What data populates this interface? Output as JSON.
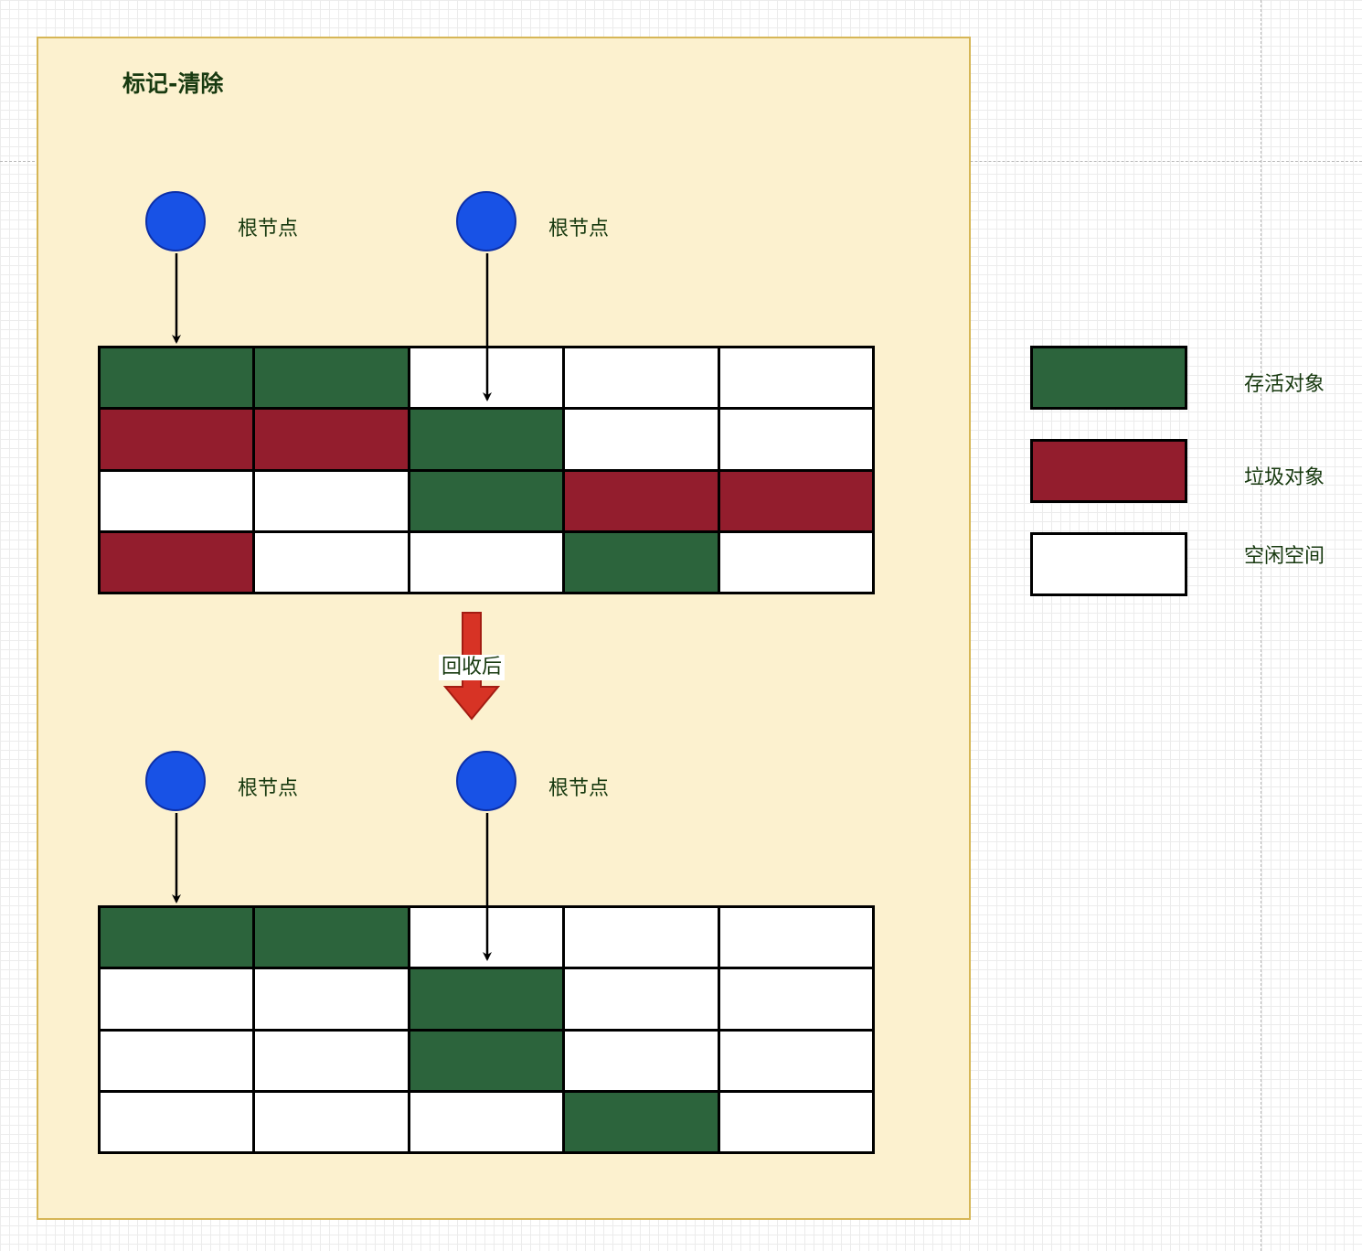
{
  "diagram": {
    "title": "标记-清除",
    "root_label": "根节点",
    "transition_label": "回收后"
  },
  "before_grid": {
    "rows": [
      [
        "live",
        "live",
        "free",
        "free",
        "free"
      ],
      [
        "garbage",
        "garbage",
        "live",
        "free",
        "free"
      ],
      [
        "free",
        "free",
        "live",
        "garbage",
        "garbage"
      ],
      [
        "garbage",
        "free",
        "free",
        "live",
        "free"
      ]
    ]
  },
  "after_grid": {
    "rows": [
      [
        "live",
        "live",
        "free",
        "free",
        "free"
      ],
      [
        "free",
        "free",
        "live",
        "free",
        "free"
      ],
      [
        "free",
        "free",
        "live",
        "free",
        "free"
      ],
      [
        "free",
        "free",
        "free",
        "live",
        "free"
      ]
    ]
  },
  "legend": {
    "live_label": "存活对象",
    "garbage_label": "垃圾对象",
    "free_label": "空闲空间"
  },
  "colors": {
    "live": "#2c643c",
    "garbage": "#931d2d",
    "free": "#ffffff",
    "root": "#1852e6",
    "frame_fill": "#fcf1cf",
    "frame_border": "#d6b656",
    "arrow_red": "#d73325"
  }
}
